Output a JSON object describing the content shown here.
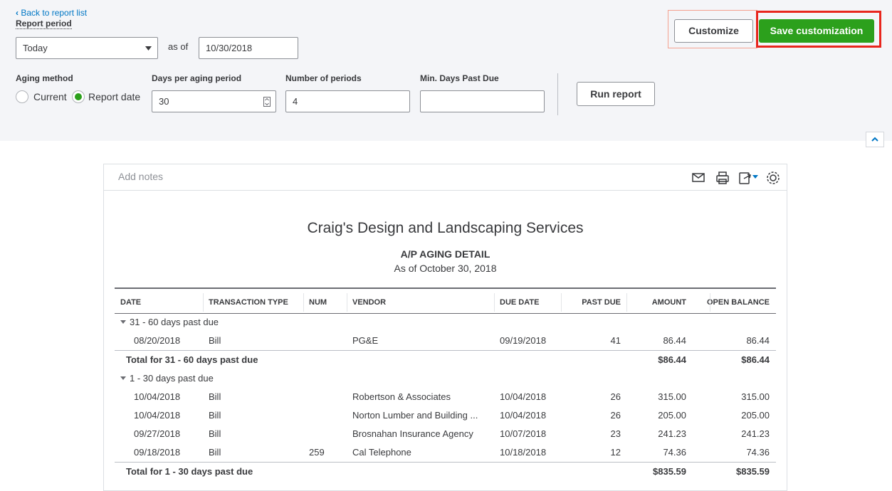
{
  "nav": {
    "back": "Back to report list"
  },
  "filters": {
    "report_period_label": "Report period",
    "period": "Today",
    "as_of_label": "as of",
    "as_of": "10/30/2018",
    "aging_method_label": "Aging method",
    "aging_options": [
      "Current",
      "Report date"
    ],
    "days_label": "Days per aging period",
    "days": "30",
    "periods_label": "Number of periods",
    "periods": "4",
    "min_days_label": "Min. Days Past Due",
    "run": "Run report"
  },
  "buttons": {
    "customize": "Customize",
    "save": "Save customization"
  },
  "report": {
    "add_notes": "Add notes",
    "company": "Craig's Design and Landscaping Services",
    "title": "A/P AGING DETAIL",
    "subtitle": "As of October 30, 2018",
    "columns": [
      "DATE",
      "TRANSACTION TYPE",
      "NUM",
      "VENDOR",
      "DUE DATE",
      "PAST DUE",
      "AMOUNT",
      "OPEN BALANCE"
    ],
    "groups": [
      {
        "label": "31 - 60 days past due",
        "rows": [
          [
            "08/20/2018",
            "Bill",
            "",
            "PG&E",
            "09/19/2018",
            "41",
            "86.44",
            "86.44"
          ]
        ],
        "total": {
          "label": "Total for 31 - 60 days past due",
          "amount": "$86.44",
          "open_balance": "$86.44"
        }
      },
      {
        "label": "1 - 30 days past due",
        "rows": [
          [
            "10/04/2018",
            "Bill",
            "",
            "Robertson & Associates",
            "10/04/2018",
            "26",
            "315.00",
            "315.00"
          ],
          [
            "10/04/2018",
            "Bill",
            "",
            "Norton Lumber and Building ...",
            "10/04/2018",
            "26",
            "205.00",
            "205.00"
          ],
          [
            "09/27/2018",
            "Bill",
            "",
            "Brosnahan Insurance Agency",
            "10/07/2018",
            "23",
            "241.23",
            "241.23"
          ],
          [
            "09/18/2018",
            "Bill",
            "259",
            "Cal Telephone",
            "10/18/2018",
            "12",
            "74.36",
            "74.36"
          ]
        ],
        "total": {
          "label": "Total for 1 - 30 days past due",
          "amount": "$835.59",
          "open_balance": "$835.59"
        }
      }
    ]
  }
}
